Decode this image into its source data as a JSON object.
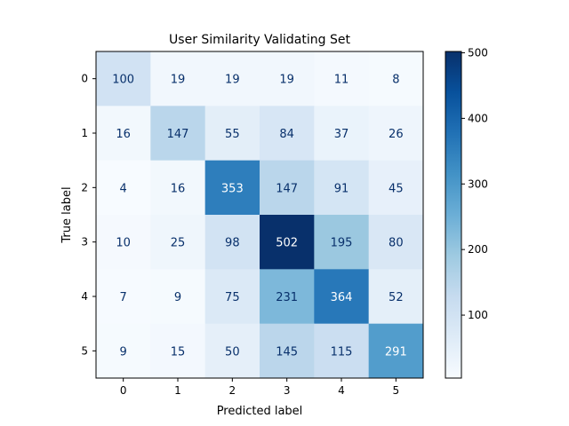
{
  "chart_data": {
    "type": "heatmap",
    "title": "User Similarity Validating Set",
    "xlabel": "Predicted label",
    "ylabel": "True label",
    "x_labels": [
      "0",
      "1",
      "2",
      "3",
      "4",
      "5"
    ],
    "y_labels": [
      "0",
      "1",
      "2",
      "3",
      "4",
      "5"
    ],
    "values": [
      [
        100,
        19,
        19,
        19,
        11,
        8
      ],
      [
        16,
        147,
        55,
        84,
        37,
        26
      ],
      [
        4,
        16,
        353,
        147,
        91,
        45
      ],
      [
        10,
        25,
        98,
        502,
        195,
        80
      ],
      [
        7,
        9,
        75,
        231,
        364,
        52
      ],
      [
        9,
        15,
        50,
        145,
        115,
        291
      ]
    ],
    "colormap": "Blues",
    "color_range": [
      4,
      502
    ],
    "colorbar_ticks": [
      100,
      200,
      300,
      400,
      500
    ],
    "text_color_dark": "#08306b",
    "text_color_light": "#ffffff"
  }
}
